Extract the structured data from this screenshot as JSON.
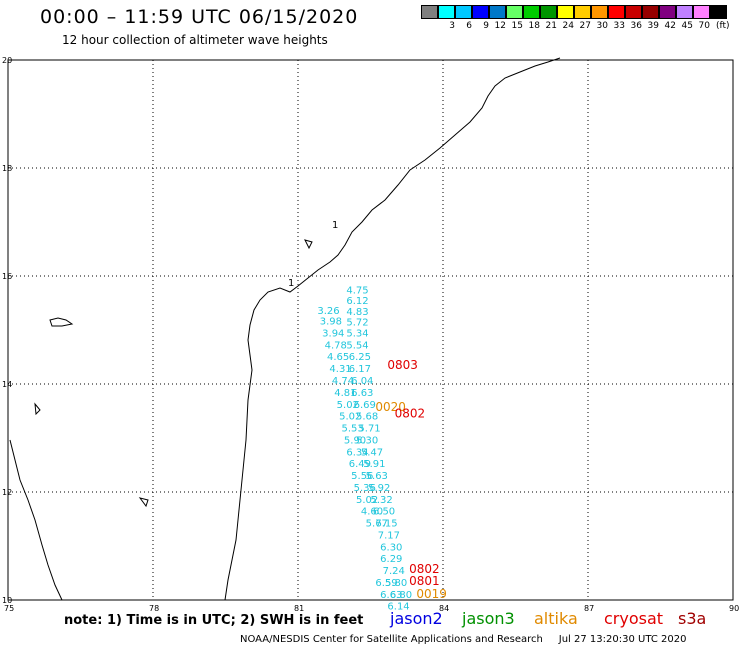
{
  "title": "00:00 – 11:59 UTC 06/15/2020",
  "subtitle": "12 hour collection of altimeter wave heights",
  "color_scale": {
    "colors": [
      "#7f7f7f",
      "#00ffff",
      "#00c8ff",
      "#0000ff",
      "#0078c8",
      "#66ff66",
      "#00cc00",
      "#009600",
      "#ffff00",
      "#ffcc00",
      "#ff9600",
      "#ff0000",
      "#c80000",
      "#960000",
      "#800080",
      "#c080ff",
      "#ff80ff",
      "#000000"
    ],
    "labels": [
      "3",
      "6",
      "9",
      "12",
      "15",
      "18",
      "21",
      "24",
      "27",
      "30",
      "33",
      "36",
      "39",
      "42",
      "45",
      "70"
    ],
    "unit": "(ft)"
  },
  "axes": {
    "lat_labels": [
      "20",
      "18",
      "16",
      "14",
      "12",
      "10"
    ],
    "lon_labels": [
      "75",
      "78",
      "81",
      "84",
      "87",
      "90"
    ],
    "lat_range": [
      10,
      20
    ],
    "lon_range": [
      75,
      90
    ],
    "grid": "dotted"
  },
  "track_values": [
    {
      "v": "4.75",
      "lon": 82.0,
      "lat": 15.68
    },
    {
      "v": "6.12",
      "lon": 82.0,
      "lat": 15.48
    },
    {
      "v": "3.26",
      "lon": 81.4,
      "lat": 15.3
    },
    {
      "v": "4.83",
      "lon": 82.0,
      "lat": 15.28
    },
    {
      "v": "3.98",
      "lon": 81.45,
      "lat": 15.1
    },
    {
      "v": "5.72",
      "lon": 82.0,
      "lat": 15.08
    },
    {
      "v": "3.94",
      "lon": 81.5,
      "lat": 14.88
    },
    {
      "v": "5.34",
      "lon": 82.0,
      "lat": 14.88
    },
    {
      "v": "4.78",
      "lon": 81.55,
      "lat": 14.66
    },
    {
      "v": "5.54",
      "lon": 82.0,
      "lat": 14.66
    },
    {
      "v": "4.65",
      "lon": 81.6,
      "lat": 14.44
    },
    {
      "v": "6.25",
      "lon": 82.05,
      "lat": 14.44
    },
    {
      "v": "4.31",
      "lon": 81.65,
      "lat": 14.22
    },
    {
      "v": "6.17",
      "lon": 82.05,
      "lat": 14.22
    },
    {
      "v": "4.74",
      "lon": 81.7,
      "lat": 14.0
    },
    {
      "v": "6.04",
      "lon": 82.1,
      "lat": 14.0
    },
    {
      "v": "4.81",
      "lon": 81.75,
      "lat": 13.78
    },
    {
      "v": "6.63",
      "lon": 82.1,
      "lat": 13.78
    },
    {
      "v": "5.02",
      "lon": 81.8,
      "lat": 13.56
    },
    {
      "v": "6.69",
      "lon": 82.15,
      "lat": 13.56
    },
    {
      "v": "5.02",
      "lon": 81.85,
      "lat": 13.34
    },
    {
      "v": "5.68",
      "lon": 82.2,
      "lat": 13.34
    },
    {
      "v": "5.53",
      "lon": 81.9,
      "lat": 13.12
    },
    {
      "v": "5.71",
      "lon": 82.25,
      "lat": 13.12
    },
    {
      "v": "5.30",
      "lon": 82.2,
      "lat": 12.9
    },
    {
      "v": "5.90",
      "lon": 81.95,
      "lat": 12.9
    },
    {
      "v": "6.34",
      "lon": 82.0,
      "lat": 12.68
    },
    {
      "v": "5.47",
      "lon": 82.3,
      "lat": 12.68
    },
    {
      "v": "6.49",
      "lon": 82.05,
      "lat": 12.46
    },
    {
      "v": "5.91",
      "lon": 82.35,
      "lat": 12.46
    },
    {
      "v": "5.56",
      "lon": 82.1,
      "lat": 12.24
    },
    {
      "v": "5.63",
      "lon": 82.4,
      "lat": 12.24
    },
    {
      "v": "5.36",
      "lon": 82.15,
      "lat": 12.02
    },
    {
      "v": "5.92",
      "lon": 82.45,
      "lat": 12.02
    },
    {
      "v": "5.32",
      "lon": 82.5,
      "lat": 11.8
    },
    {
      "v": "5.02",
      "lon": 82.2,
      "lat": 11.8
    },
    {
      "v": "4.60",
      "lon": 82.3,
      "lat": 11.58
    },
    {
      "v": "6.50",
      "lon": 82.55,
      "lat": 11.58
    },
    {
      "v": "6.15",
      "lon": 82.6,
      "lat": 11.36
    },
    {
      "v": "5.77",
      "lon": 82.4,
      "lat": 11.36
    },
    {
      "v": "7.17",
      "lon": 82.65,
      "lat": 11.14
    },
    {
      "v": "6.30",
      "lon": 82.7,
      "lat": 10.92
    },
    {
      "v": "6.29",
      "lon": 82.7,
      "lat": 10.7
    },
    {
      "v": "7.24",
      "lon": 82.75,
      "lat": 10.48
    },
    {
      "v": "5.80",
      "lon": 82.8,
      "lat": 10.26
    },
    {
      "v": "6.59",
      "lon": 82.6,
      "lat": 10.26
    },
    {
      "v": "6.80",
      "lon": 82.9,
      "lat": 10.04
    },
    {
      "v": "6.63",
      "lon": 82.7,
      "lat": 10.04
    },
    {
      "v": "6.14",
      "lon": 82.85,
      "lat": 9.82
    }
  ],
  "pass_times": [
    {
      "text": "0803",
      "color": "#e00000",
      "lon": 82.85,
      "lat": 14.28
    },
    {
      "text": "0020",
      "color": "#e08a00",
      "lon": 82.6,
      "lat": 13.5
    },
    {
      "text": "0802",
      "color": "#e00000",
      "lon": 83.0,
      "lat": 13.38
    },
    {
      "text": "0802",
      "color": "#e00000",
      "lon": 83.3,
      "lat": 10.5
    },
    {
      "text": "0801",
      "color": "#e00000",
      "lon": 83.3,
      "lat": 10.28
    },
    {
      "text": "0019",
      "color": "#e08a00",
      "lon": 83.45,
      "lat": 10.04
    }
  ],
  "note": "note:  1) Time is in UTC;  2) SWH is in feet",
  "legend": [
    {
      "label": "jason2",
      "color": "#0000e0"
    },
    {
      "label": "jason3",
      "color": "#009000"
    },
    {
      "label": "altika",
      "color": "#e08a00"
    },
    {
      "label": "cryosat",
      "color": "#e00000"
    },
    {
      "label": "s3a",
      "color": "#a00000"
    }
  ],
  "footer": {
    "agency": "NOAA/NESDIS Center for Satellite Applications and Research",
    "timestamp": "Jul 27 13:20:30 UTC 2020"
  },
  "island_labels": [
    "1",
    "1"
  ]
}
